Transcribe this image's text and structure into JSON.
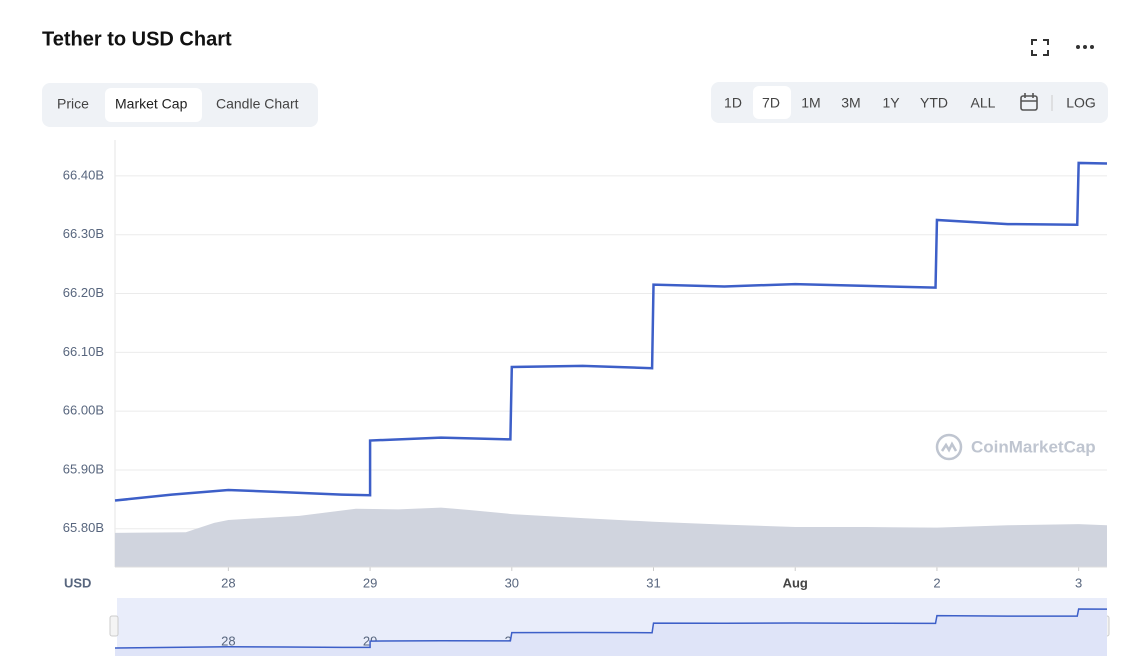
{
  "chart_data": {
    "type": "line",
    "title": "Tether to USD Chart",
    "ylabel": "USD",
    "watermark": "CoinMarketCap",
    "tabs": [
      "Price",
      "Market Cap",
      "Candle Chart"
    ],
    "selected_tab": 1,
    "ranges": [
      "1D",
      "7D",
      "1M",
      "3M",
      "1Y",
      "YTD",
      "ALL"
    ],
    "selected_range": 1,
    "scale_button": "LOG",
    "xlim": [
      27.2,
      34.2
    ],
    "xticks": [
      28,
      29,
      30,
      31,
      {
        "value": 32,
        "label": "Aug"
      },
      {
        "value": 33,
        "label": "2"
      },
      {
        "value": 34,
        "label": "3"
      }
    ],
    "ylim": [
      65.735,
      66.461
    ],
    "yticks": [
      {
        "value": 65.8,
        "label": "65.80B"
      },
      {
        "value": 65.9,
        "label": "65.90B"
      },
      {
        "value": 66.0,
        "label": "66.00B"
      },
      {
        "value": 66.1,
        "label": "66.10B"
      },
      {
        "value": 66.2,
        "label": "66.20B"
      },
      {
        "value": 66.3,
        "label": "66.30B"
      },
      {
        "value": 66.4,
        "label": "66.40B"
      }
    ],
    "grid": true,
    "series": [
      {
        "color": "#3d5fc8",
        "kind": "line",
        "x": [
          27.2,
          27.6,
          28.0,
          28.4,
          28.8,
          29.0,
          29.0,
          29.5,
          29.99,
          30.0,
          30.5,
          30.99,
          31.0,
          31.5,
          32.0,
          32.5,
          32.99,
          33.0,
          33.5,
          33.99,
          34.0,
          34.2
        ],
        "values": [
          65.848,
          65.858,
          65.866,
          65.862,
          65.858,
          65.857,
          65.95,
          65.955,
          65.952,
          66.075,
          66.077,
          66.073,
          66.215,
          66.212,
          66.216,
          66.213,
          66.21,
          66.325,
          66.318,
          66.317,
          66.422,
          66.421
        ]
      },
      {
        "color": "#d0d4de",
        "kind": "area",
        "x": [
          27.2,
          27.7,
          27.9,
          28.0,
          28.5,
          28.9,
          29.2,
          29.5,
          29.7,
          30.0,
          30.5,
          31.0,
          31.5,
          32.0,
          32.5,
          33.0,
          33.5,
          34.0,
          34.2
        ],
        "values": [
          65.793,
          65.794,
          65.81,
          65.815,
          65.822,
          65.834,
          65.833,
          65.836,
          65.832,
          65.825,
          65.818,
          65.812,
          65.807,
          65.803,
          65.803,
          65.802,
          65.806,
          65.808,
          65.806
        ]
      }
    ]
  }
}
